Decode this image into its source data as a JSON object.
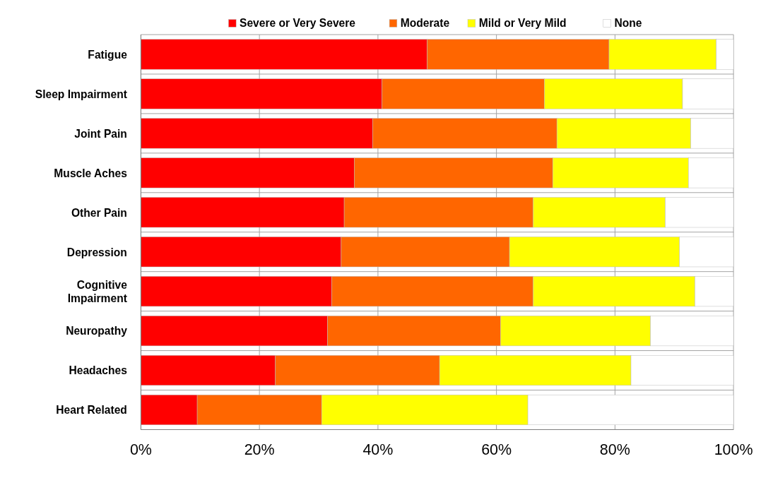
{
  "chart_data": {
    "type": "bar",
    "orientation": "horizontal",
    "stacked": true,
    "categories": [
      "Fatigue",
      "Sleep Impairment",
      "Joint Pain",
      "Muscle Aches",
      "Other Pain",
      "Depression",
      "Cognitive Impairment",
      "Neuropathy",
      "Headaches",
      "Heart Related"
    ],
    "series": [
      {
        "name": "Severe or Very Severe",
        "color": "#ff0000",
        "values": [
          48.3,
          40.7,
          39.1,
          36.0,
          34.3,
          33.8,
          32.2,
          31.5,
          22.7,
          9.5
        ]
      },
      {
        "name": "Moderate",
        "color": "#ff6600",
        "values": [
          30.7,
          27.4,
          31.1,
          33.5,
          31.9,
          28.4,
          34.0,
          29.2,
          27.7,
          21.0
        ]
      },
      {
        "name": "Mild or Very Mild",
        "color": "#ffff00",
        "values": [
          18.1,
          23.3,
          22.6,
          22.9,
          22.3,
          28.7,
          27.3,
          25.3,
          32.3,
          34.8
        ]
      },
      {
        "name": "None",
        "color": "#ffffff",
        "values": [
          2.9,
          8.6,
          7.2,
          7.6,
          11.5,
          9.1,
          6.5,
          14.0,
          17.3,
          34.7
        ]
      }
    ],
    "xlim": [
      0,
      100
    ],
    "xticks": [
      {
        "value": 0,
        "label": "0%"
      },
      {
        "value": 20,
        "label": "20%"
      },
      {
        "value": 40,
        "label": "40%"
      },
      {
        "value": 60,
        "label": "60%"
      },
      {
        "value": 80,
        "label": "80%"
      },
      {
        "value": 100,
        "label": "100%"
      }
    ],
    "grid": true,
    "legend": "top"
  }
}
